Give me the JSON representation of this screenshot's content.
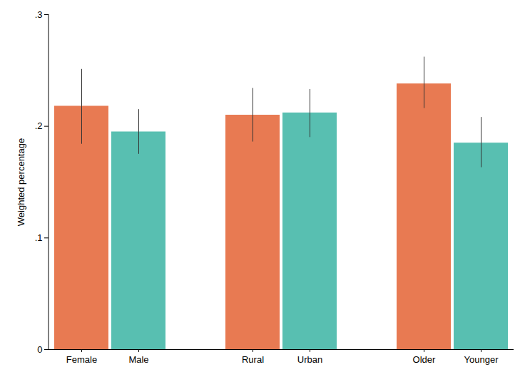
{
  "chart_data": {
    "type": "bar",
    "y_label": "Weighted percentage",
    "categories": [
      "Female",
      "Male",
      "Rural",
      "Urban",
      "Older",
      "Younger"
    ],
    "values": [
      0.218,
      0.195,
      0.21,
      0.212,
      0.238,
      0.185
    ],
    "colors": [
      "#e87a52",
      "#58bfb1",
      "#e87a52",
      "#58bfb1",
      "#e87a52",
      "#58bfb1"
    ],
    "error_lower": [
      0.184,
      0.175,
      0.186,
      0.19,
      0.216,
      0.163
    ],
    "error_upper": [
      0.251,
      0.215,
      0.234,
      0.233,
      0.262,
      0.208
    ],
    "ylim": [
      0,
      0.3
    ],
    "yticks": [
      0,
      {
        "value": 0.1,
        "label": ".1"
      },
      {
        "value": 0.2,
        "label": ".2"
      },
      {
        "value": 0.3,
        "label": ".3"
      }
    ],
    "grid": false
  }
}
